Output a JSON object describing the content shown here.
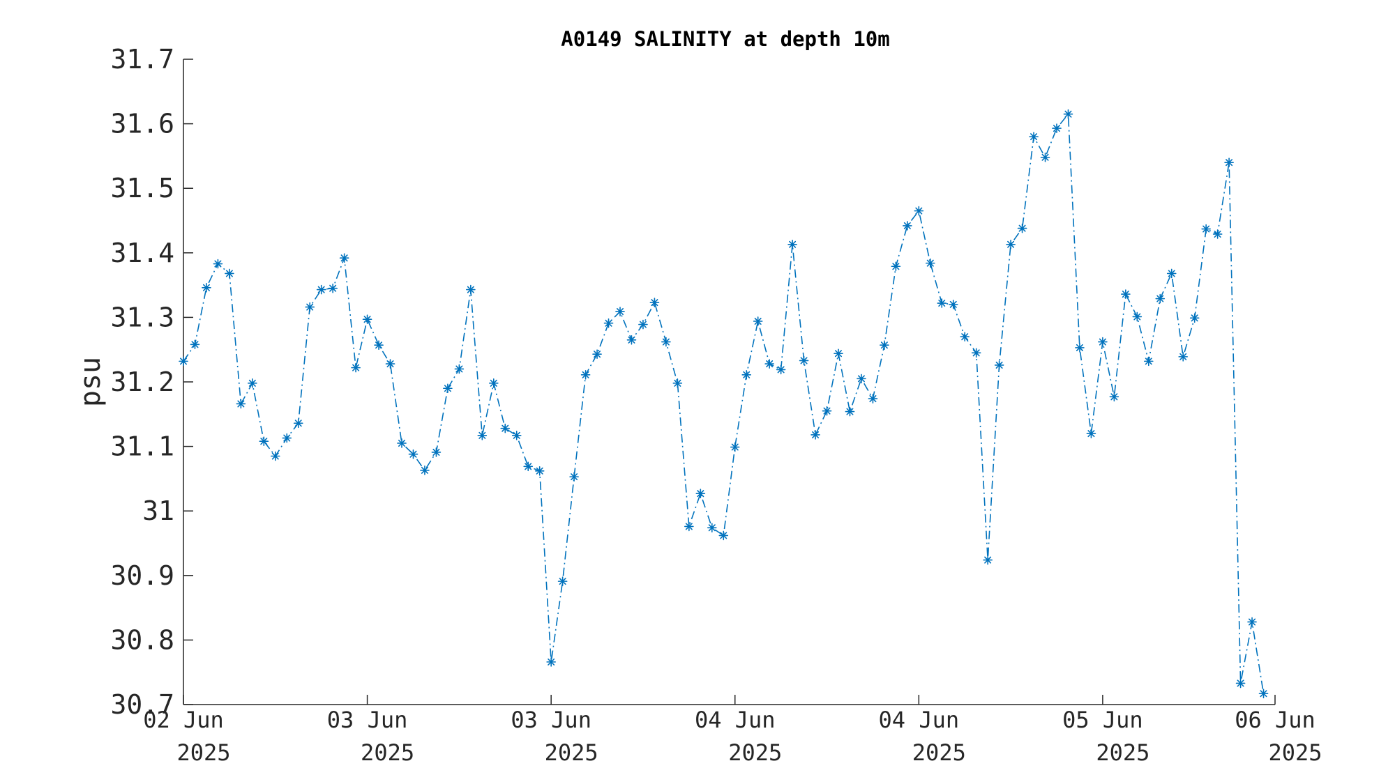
{
  "chart_data": {
    "type": "line",
    "title": "A0149 SALINITY at depth 10m",
    "ylabel": "psu",
    "xlabel": "",
    "ylim": [
      30.7,
      31.7
    ],
    "yticks": [
      30.7,
      30.8,
      30.9,
      31,
      31.1,
      31.2,
      31.3,
      31.4,
      31.5,
      31.6,
      31.7
    ],
    "xlim_index": [
      0,
      95
    ],
    "xtick_index": [
      0,
      16,
      32,
      48,
      64,
      80,
      95
    ],
    "xtick_labels": [
      {
        "day": "02 Jun",
        "year": "2025"
      },
      {
        "day": "03 Jun",
        "year": "2025"
      },
      {
        "day": "03 Jun",
        "year": "2025"
      },
      {
        "day": "04 Jun",
        "year": "2025"
      },
      {
        "day": "04 Jun",
        "year": "2025"
      },
      {
        "day": "05 Jun",
        "year": "2025"
      },
      {
        "day": "06 Jun",
        "year": "2025"
      }
    ],
    "marker": "asterisk",
    "line_style": "dash-dot",
    "color": "#0072BD",
    "grid": false,
    "series": [
      {
        "values": [
          31.232,
          31.258,
          31.346,
          31.383,
          31.368,
          31.166,
          31.198,
          31.108,
          31.085,
          31.113,
          31.136,
          31.316,
          31.343,
          31.345,
          31.392,
          31.222,
          31.297,
          31.257,
          31.228,
          31.105,
          31.088,
          31.063,
          31.091,
          31.19,
          31.22,
          31.343,
          31.117,
          31.198,
          31.128,
          31.117,
          31.069,
          31.062,
          30.766,
          30.891,
          31.053,
          31.211,
          31.243,
          31.291,
          31.309,
          31.265,
          31.289,
          31.323,
          31.262,
          31.198,
          30.976,
          31.027,
          30.974,
          30.962,
          31.099,
          31.211,
          31.294,
          31.228,
          31.219,
          31.413,
          31.233,
          31.118,
          31.155,
          31.244,
          31.154,
          31.205,
          31.174,
          31.257,
          31.379,
          31.442,
          31.465,
          31.384,
          31.322,
          31.32,
          31.27,
          31.245,
          30.924,
          31.226,
          31.413,
          31.438,
          31.58,
          31.548,
          31.593,
          31.615,
          31.253,
          31.12,
          31.262,
          31.177,
          31.336,
          31.301,
          31.232,
          31.329,
          31.368,
          31.239,
          31.299,
          31.437,
          31.429,
          31.54,
          30.733,
          30.828,
          30.717
        ]
      }
    ]
  }
}
